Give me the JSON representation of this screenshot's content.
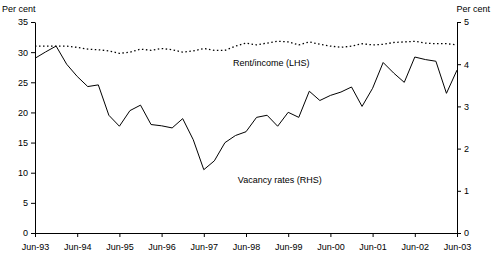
{
  "chart_data": {
    "type": "line",
    "y_label": "Per cent",
    "y2_label": "Per cent",
    "categories": [
      "Jun-93",
      null,
      null,
      null,
      "Jun-94",
      null,
      null,
      null,
      "Jun-95",
      null,
      null,
      null,
      "Jun-96",
      null,
      null,
      null,
      "Jun-97",
      null,
      null,
      null,
      "Jun-98",
      null,
      null,
      null,
      "Jun-99",
      null,
      null,
      null,
      "Jun-00",
      null,
      null,
      null,
      "Jun-01",
      null,
      null,
      null,
      "Jun-02",
      null,
      null,
      null,
      "Jun-03"
    ],
    "ylim": [
      0,
      35
    ],
    "yticks": [
      0,
      5,
      10,
      15,
      20,
      25,
      30,
      35
    ],
    "y2lim": [
      0,
      5
    ],
    "y2ticks": [
      0,
      1,
      2,
      3,
      4,
      5
    ],
    "grid": false,
    "series": [
      {
        "name": "Rent/income (LHS)",
        "color": "#000000",
        "line_style": "dotted",
        "axis": "y",
        "values": [
          31,
          31,
          31,
          31,
          30.8,
          30.5,
          30.4,
          30.2,
          29.8,
          30,
          30.5,
          30.3,
          30.6,
          30.4,
          30,
          30.2,
          30.6,
          30.3,
          30.3,
          31,
          31.5,
          31.2,
          31.5,
          31.8,
          31.7,
          31.2,
          31.7,
          31.3,
          31,
          30.8,
          31,
          31.4,
          31.2,
          31.3,
          31.6,
          31.7,
          31.8,
          31.5,
          31.4,
          31.4,
          31.2
        ]
      },
      {
        "name": "Vacancy rates (RHS)",
        "color": "#000000",
        "line_style": "solid",
        "axis": "y2",
        "values": [
          4.14,
          4.29,
          4.43,
          4.0,
          3.71,
          3.47,
          3.51,
          2.79,
          2.53,
          2.9,
          3.03,
          2.57,
          2.54,
          2.49,
          2.71,
          2.21,
          1.5,
          1.71,
          2.14,
          2.31,
          2.4,
          2.74,
          2.79,
          2.53,
          2.86,
          2.74,
          3.36,
          3.14,
          3.26,
          3.34,
          3.46,
          3.0,
          3.43,
          4.04,
          3.79,
          3.57,
          4.17,
          4.11,
          4.07,
          3.31,
          3.86
        ]
      }
    ]
  }
}
